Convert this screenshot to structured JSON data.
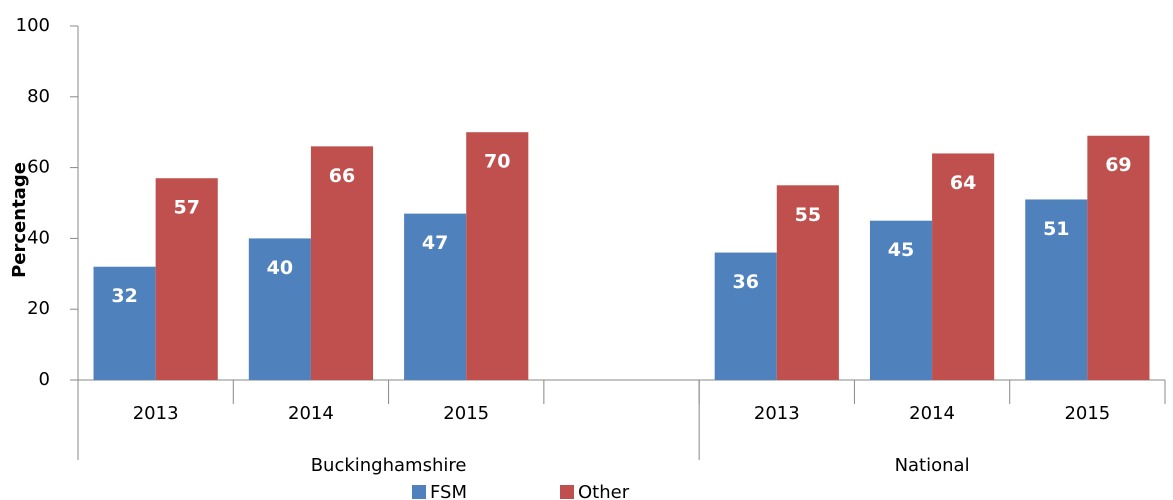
{
  "chart_data": {
    "type": "bar",
    "y_label": "Percentage",
    "categories": [
      "2013",
      "2014",
      "2015",
      null,
      "2013",
      "2014",
      "2015"
    ],
    "groups": [
      {
        "name": "Buckinghamshire",
        "span": 4
      },
      {
        "name": "National",
        "span": 3
      }
    ],
    "series": [
      {
        "name": "FSM",
        "color": "#4f81bd",
        "values": [
          32,
          40,
          47,
          null,
          36,
          45,
          51
        ]
      },
      {
        "name": "Other",
        "color": "#c0504d",
        "values": [
          57,
          66,
          70,
          null,
          55,
          64,
          69
        ]
      }
    ],
    "ylim": [
      0,
      100
    ],
    "yticks": [
      0,
      20,
      40,
      60,
      80,
      100
    ],
    "grid": false,
    "legend": "bottom"
  }
}
